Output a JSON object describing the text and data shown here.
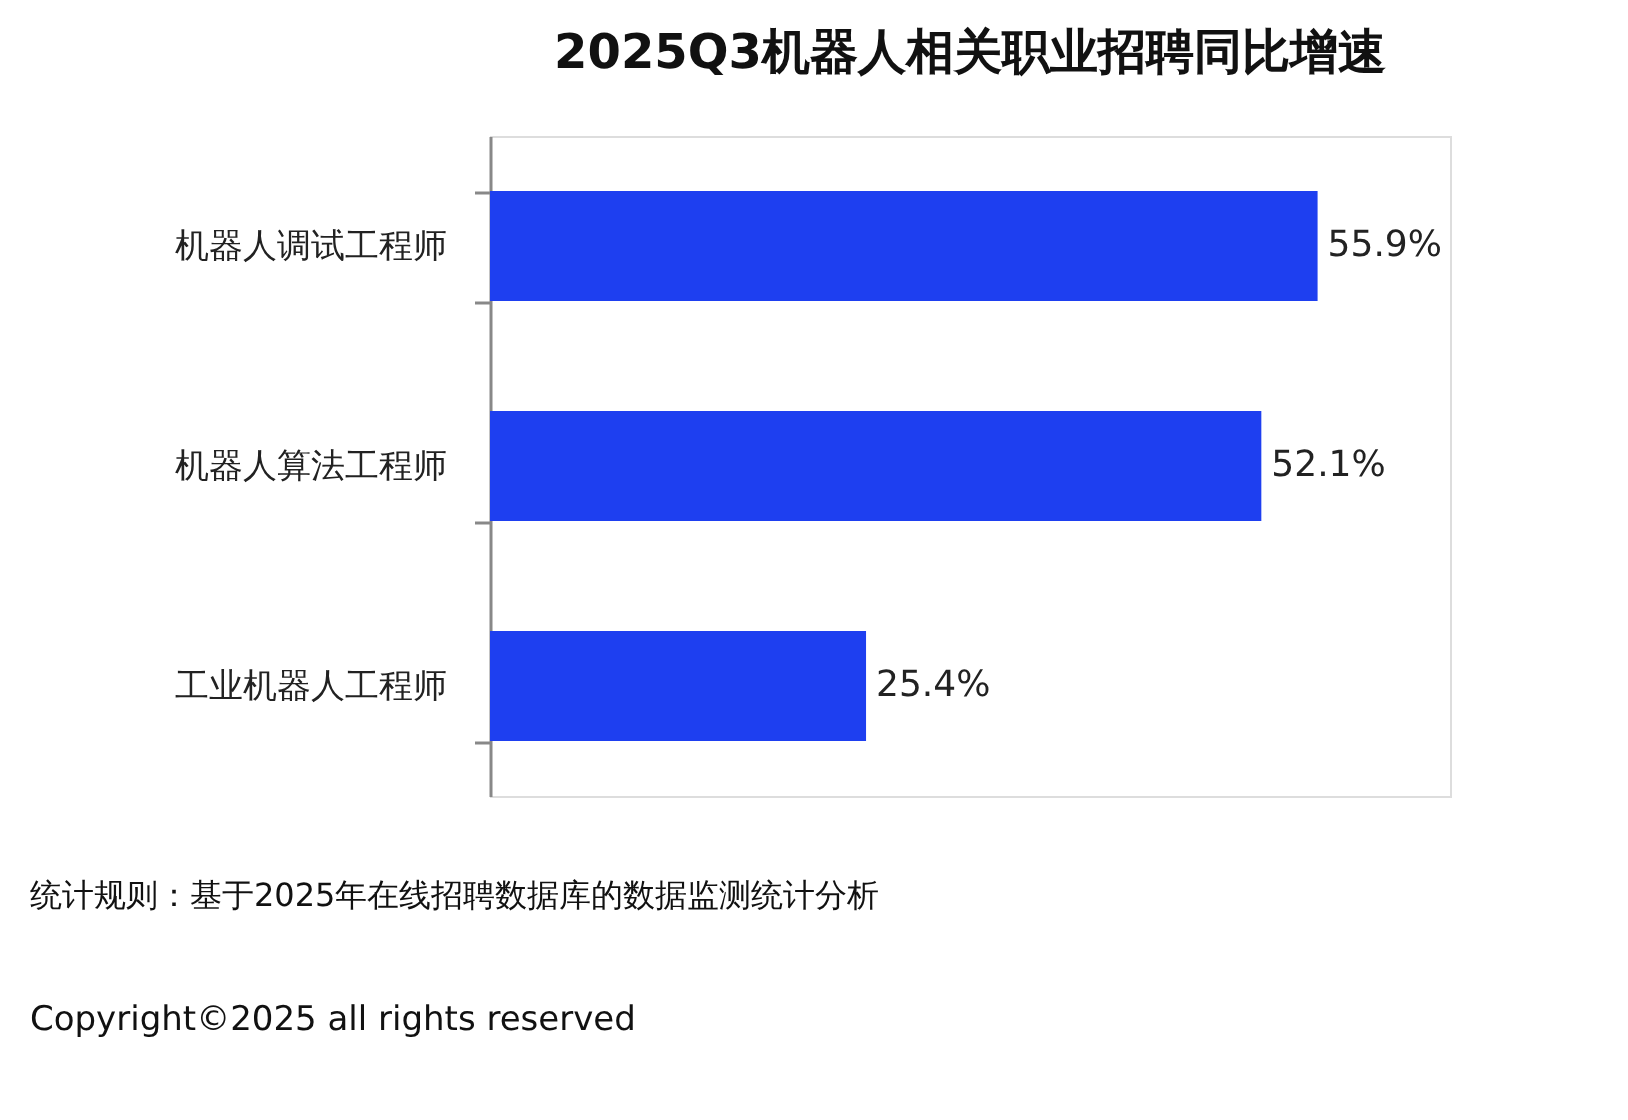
{
  "chart_data": {
    "type": "bar",
    "orientation": "horizontal",
    "title": "2025Q3机器人相关职业招聘同比增速",
    "categories": [
      "机器人调试工程师",
      "机器人算法工程师",
      "工业机器人工程师"
    ],
    "values": [
      55.9,
      52.1,
      25.4
    ],
    "color": "#1e3ff0",
    "value_labels": [
      "55.9%",
      "52.1%",
      "25.4%"
    ],
    "tick_labels": "y",
    "annotations": [
      "统计规则：基于2025年在线招聘数据库的数据监测统计分析",
      "Copyright©2025 all rights reserved"
    ]
  }
}
